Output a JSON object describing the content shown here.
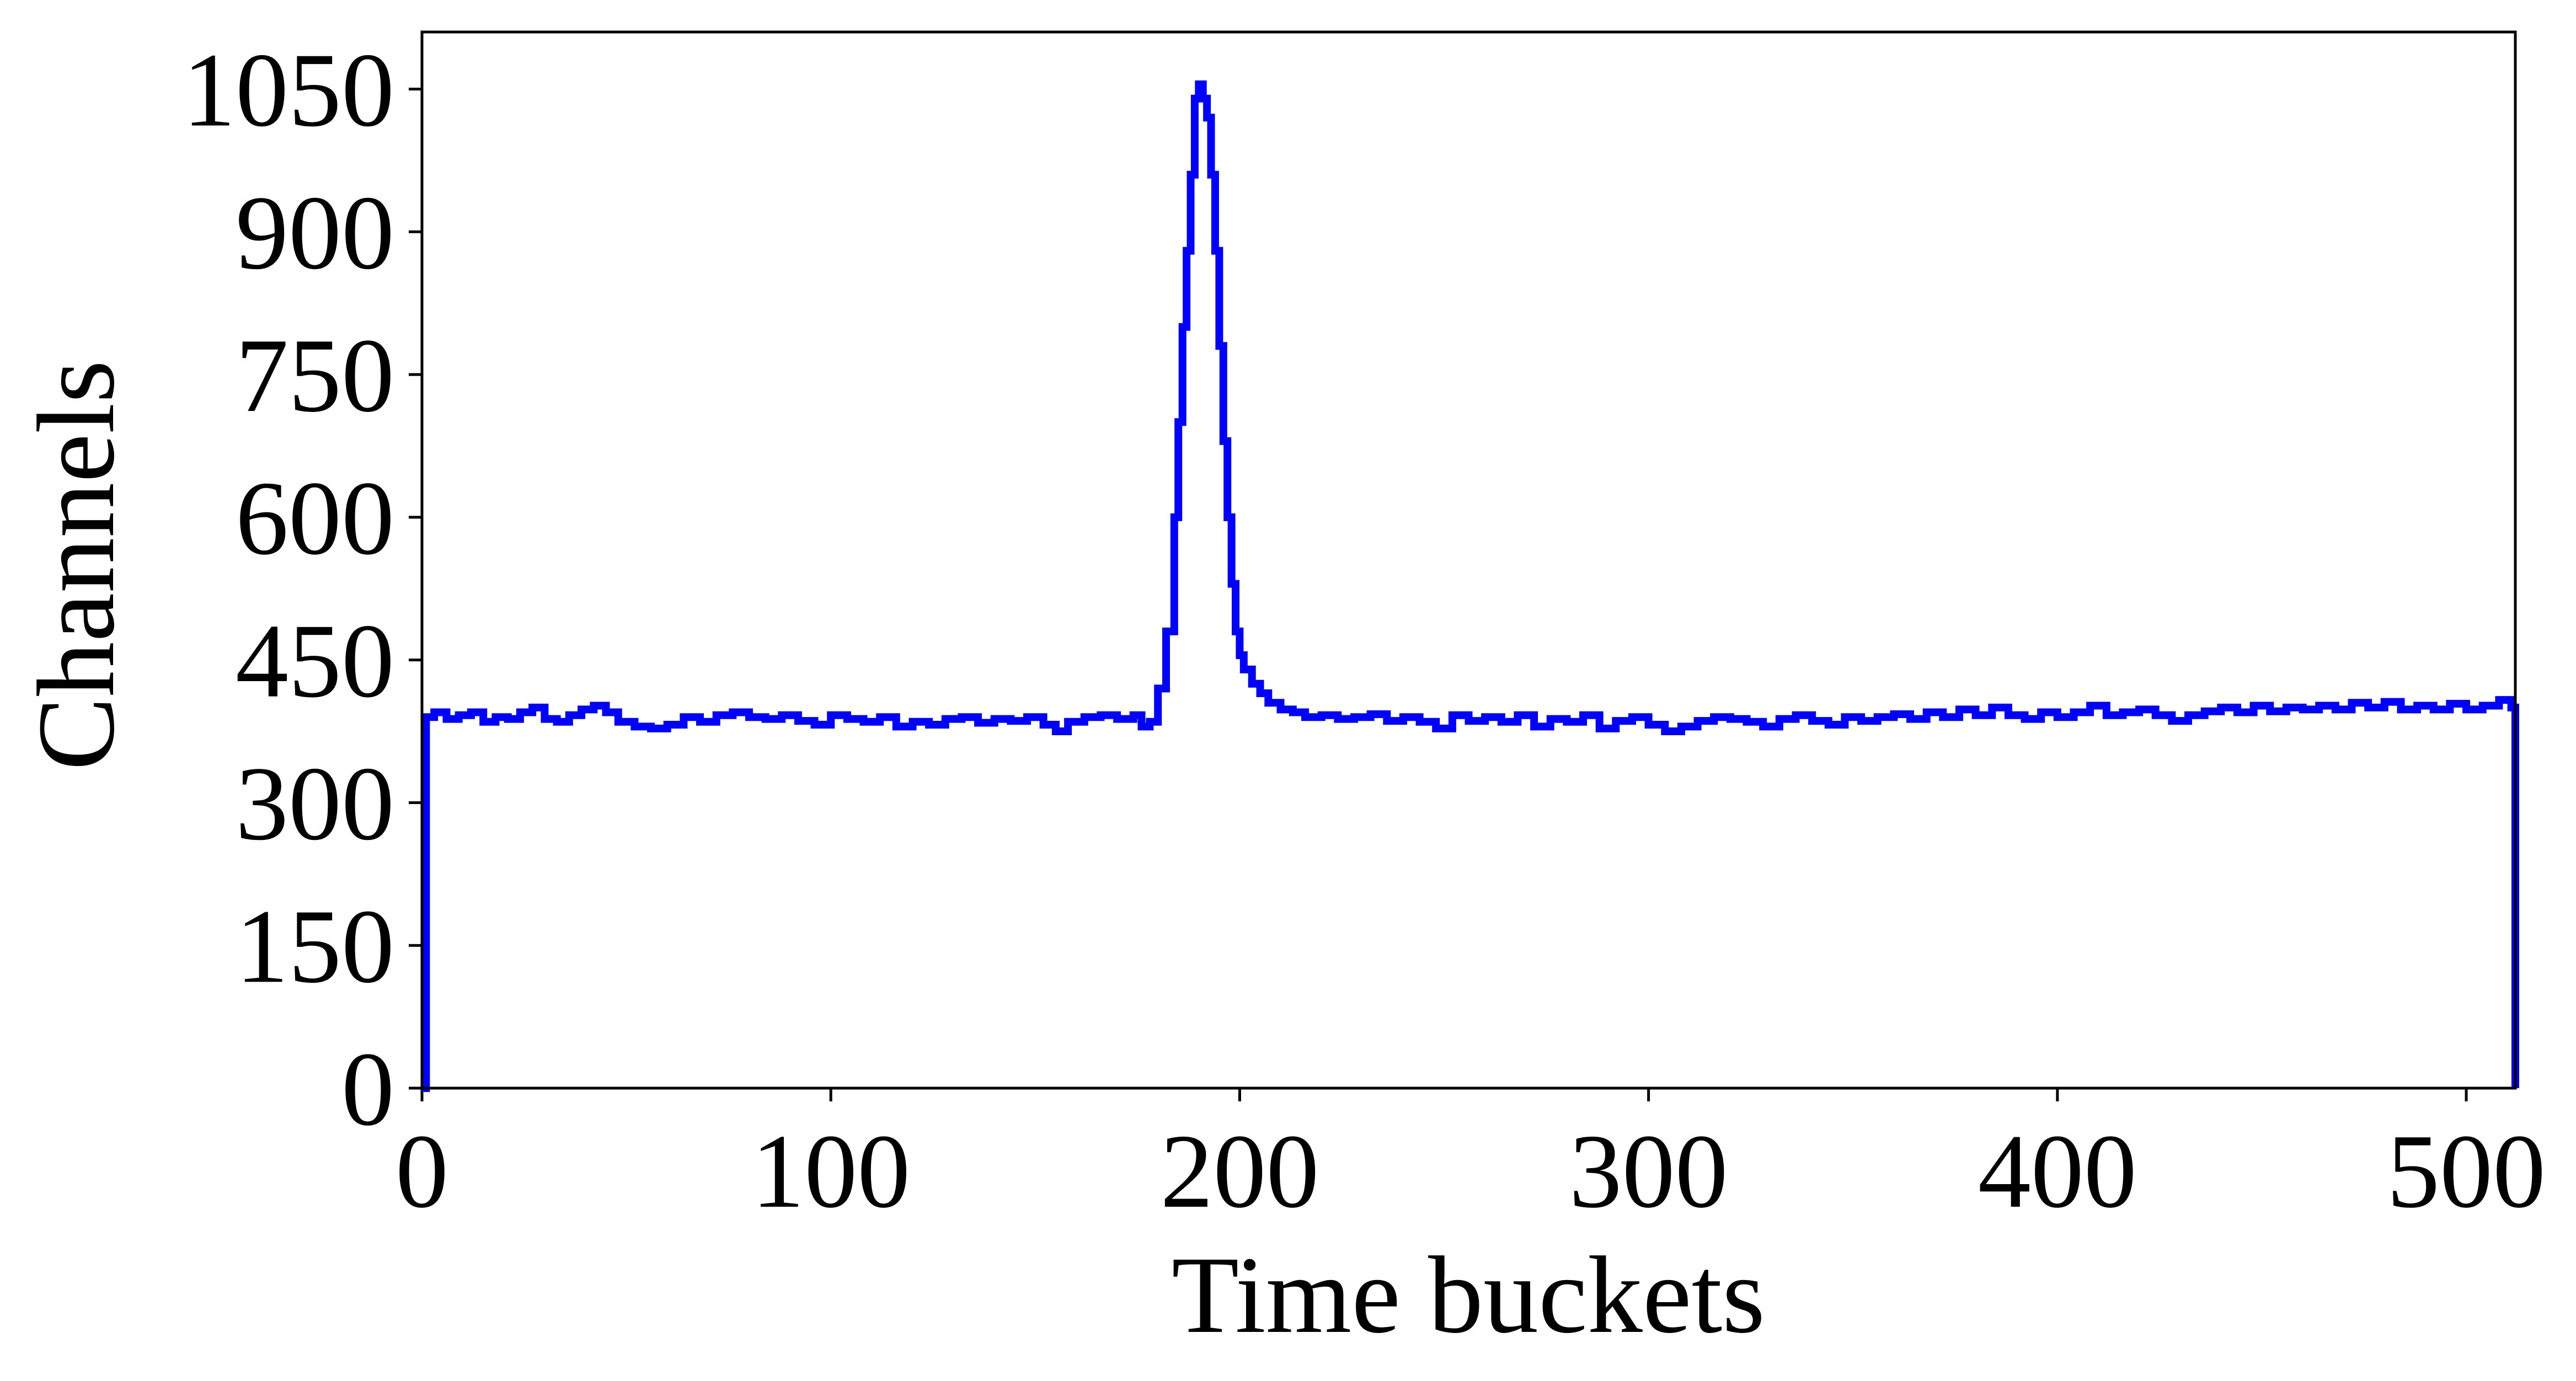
{
  "chart_data": {
    "type": "line",
    "style": "step histogram",
    "xlabel": "Time buckets",
    "ylabel": "Channels",
    "title": "",
    "xlim": [
      0,
      512
    ],
    "ylim": [
      0,
      1110
    ],
    "xticks": [
      0,
      100,
      200,
      300,
      400,
      500
    ],
    "yticks": [
      0,
      150,
      300,
      450,
      600,
      750,
      900,
      1050
    ],
    "grid": false,
    "legend": "none",
    "series": [
      {
        "color": "#0000ff",
        "points": [
          [
            0,
            0
          ],
          [
            1,
            390
          ],
          [
            3,
            395
          ],
          [
            6,
            388
          ],
          [
            9,
            392
          ],
          [
            12,
            395
          ],
          [
            15,
            385
          ],
          [
            18,
            390
          ],
          [
            21,
            388
          ],
          [
            24,
            395
          ],
          [
            27,
            400
          ],
          [
            30,
            388
          ],
          [
            33,
            385
          ],
          [
            36,
            392
          ],
          [
            39,
            398
          ],
          [
            42,
            402
          ],
          [
            45,
            395
          ],
          [
            48,
            385
          ],
          [
            52,
            380
          ],
          [
            56,
            378
          ],
          [
            60,
            382
          ],
          [
            64,
            390
          ],
          [
            68,
            385
          ],
          [
            72,
            392
          ],
          [
            76,
            395
          ],
          [
            80,
            390
          ],
          [
            84,
            388
          ],
          [
            88,
            392
          ],
          [
            92,
            386
          ],
          [
            96,
            382
          ],
          [
            100,
            392
          ],
          [
            104,
            388
          ],
          [
            108,
            385
          ],
          [
            112,
            390
          ],
          [
            116,
            380
          ],
          [
            120,
            385
          ],
          [
            124,
            382
          ],
          [
            128,
            388
          ],
          [
            132,
            390
          ],
          [
            136,
            384
          ],
          [
            140,
            388
          ],
          [
            144,
            386
          ],
          [
            148,
            390
          ],
          [
            152,
            382
          ],
          [
            155,
            375
          ],
          [
            158,
            385
          ],
          [
            162,
            390
          ],
          [
            166,
            392
          ],
          [
            170,
            388
          ],
          [
            174,
            392
          ],
          [
            176,
            380
          ],
          [
            178,
            385
          ],
          [
            180,
            420
          ],
          [
            182,
            480
          ],
          [
            184,
            600
          ],
          [
            185,
            700
          ],
          [
            186,
            800
          ],
          [
            187,
            880
          ],
          [
            188,
            960
          ],
          [
            189,
            1040
          ],
          [
            190,
            1055
          ],
          [
            191,
            1040
          ],
          [
            192,
            1020
          ],
          [
            193,
            960
          ],
          [
            194,
            880
          ],
          [
            195,
            780
          ],
          [
            196,
            680
          ],
          [
            197,
            600
          ],
          [
            198,
            530
          ],
          [
            199,
            480
          ],
          [
            200,
            455
          ],
          [
            201,
            440
          ],
          [
            203,
            425
          ],
          [
            205,
            415
          ],
          [
            207,
            405
          ],
          [
            210,
            398
          ],
          [
            213,
            395
          ],
          [
            216,
            390
          ],
          [
            220,
            392
          ],
          [
            224,
            388
          ],
          [
            228,
            390
          ],
          [
            232,
            393
          ],
          [
            236,
            386
          ],
          [
            240,
            390
          ],
          [
            244,
            385
          ],
          [
            248,
            378
          ],
          [
            252,
            392
          ],
          [
            256,
            386
          ],
          [
            260,
            390
          ],
          [
            264,
            385
          ],
          [
            268,
            392
          ],
          [
            272,
            380
          ],
          [
            276,
            388
          ],
          [
            280,
            385
          ],
          [
            284,
            392
          ],
          [
            288,
            378
          ],
          [
            292,
            386
          ],
          [
            296,
            390
          ],
          [
            300,
            382
          ],
          [
            304,
            375
          ],
          [
            308,
            380
          ],
          [
            312,
            386
          ],
          [
            316,
            390
          ],
          [
            320,
            388
          ],
          [
            324,
            385
          ],
          [
            328,
            380
          ],
          [
            332,
            388
          ],
          [
            336,
            392
          ],
          [
            340,
            386
          ],
          [
            344,
            382
          ],
          [
            348,
            390
          ],
          [
            352,
            386
          ],
          [
            356,
            390
          ],
          [
            360,
            393
          ],
          [
            364,
            388
          ],
          [
            368,
            395
          ],
          [
            372,
            390
          ],
          [
            376,
            398
          ],
          [
            380,
            392
          ],
          [
            384,
            400
          ],
          [
            388,
            392
          ],
          [
            392,
            388
          ],
          [
            396,
            395
          ],
          [
            400,
            390
          ],
          [
            404,
            395
          ],
          [
            408,
            402
          ],
          [
            412,
            392
          ],
          [
            416,
            395
          ],
          [
            420,
            398
          ],
          [
            424,
            392
          ],
          [
            428,
            386
          ],
          [
            432,
            392
          ],
          [
            436,
            396
          ],
          [
            440,
            400
          ],
          [
            444,
            395
          ],
          [
            448,
            402
          ],
          [
            452,
            396
          ],
          [
            456,
            400
          ],
          [
            460,
            398
          ],
          [
            464,
            402
          ],
          [
            468,
            398
          ],
          [
            472,
            405
          ],
          [
            476,
            400
          ],
          [
            480,
            406
          ],
          [
            484,
            398
          ],
          [
            488,
            402
          ],
          [
            492,
            398
          ],
          [
            496,
            404
          ],
          [
            500,
            398
          ],
          [
            504,
            402
          ],
          [
            508,
            408
          ],
          [
            511,
            400
          ],
          [
            512,
            0
          ]
        ]
      }
    ]
  }
}
